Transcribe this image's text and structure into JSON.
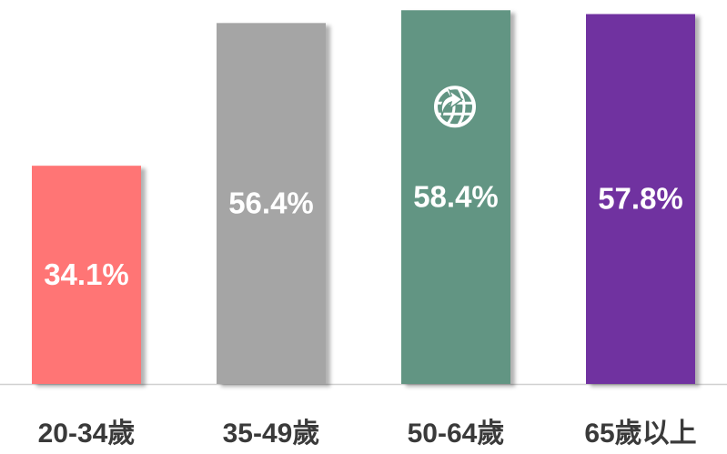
{
  "chart_data": {
    "type": "bar",
    "categories": [
      "20-34歲",
      "35-49歲",
      "50-64歲",
      "65歲以上"
    ],
    "values": [
      34.1,
      56.4,
      58.4,
      57.8
    ],
    "value_labels": [
      "34.1%",
      "56.4%",
      "58.4%",
      "57.8%"
    ],
    "colors": [
      "#ff7575",
      "#a5a5a5",
      "#629583",
      "#7030a0"
    ],
    "ylim": [
      0,
      60
    ]
  }
}
